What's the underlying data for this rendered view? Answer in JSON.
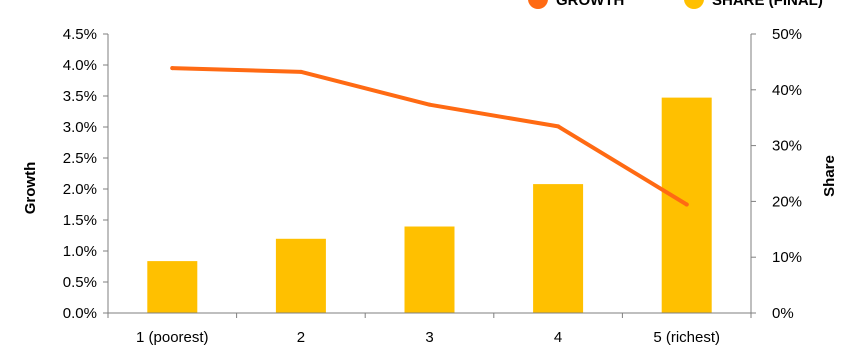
{
  "chart_data": {
    "type": "bar",
    "categories": [
      "1 (poorest)",
      "2",
      "3",
      "4",
      "5 (richest)"
    ],
    "series": [
      {
        "name": "SHARE (FINAL)",
        "type": "bar",
        "axis": "right",
        "color": "#FFC000",
        "values": [
          9.3,
          13.3,
          15.5,
          23.1,
          38.6
        ]
      },
      {
        "name": "GROWTH",
        "type": "line",
        "axis": "left",
        "color": "#FF6A13",
        "values": [
          3.95,
          3.89,
          3.36,
          3.01,
          1.75
        ]
      }
    ],
    "ylabel": "Growth",
    "ylabel_right": "Share",
    "ylim": [
      0,
      4.5
    ],
    "ylim_right": [
      0,
      50
    ],
    "yticks": [
      "0.0%",
      "0.5%",
      "1.0%",
      "1.5%",
      "2.0%",
      "2.5%",
      "3.0%",
      "3.5%",
      "4.0%",
      "4.5%"
    ],
    "yticks_right": [
      "0%",
      "10%",
      "20%",
      "30%",
      "40%",
      "50%"
    ],
    "legend_position": "top-right",
    "grid": false
  }
}
